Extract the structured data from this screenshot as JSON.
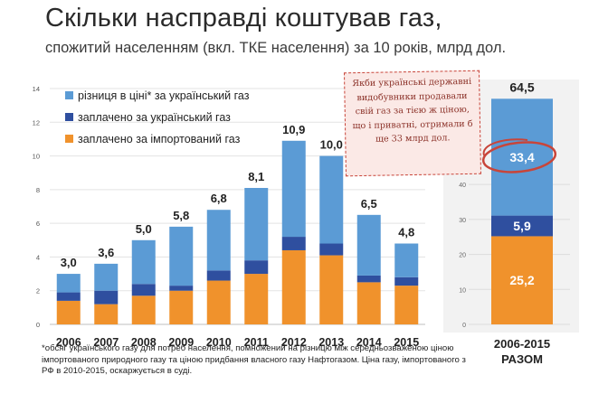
{
  "title": "Скільки насправді коштував газ,",
  "subtitle": "спожитий населенням (вкл. ТКЕ населення) за 10 років, млрд дол.",
  "colors": {
    "diff": "#5b9bd5",
    "ukrainian": "#2f4f9f",
    "imported": "#f0922c",
    "annotation": "#c8453a"
  },
  "chart_data": [
    {
      "type": "bar",
      "stacked": true,
      "categories": [
        "2006",
        "2007",
        "2008",
        "2009",
        "2010",
        "2011",
        "2012",
        "2013",
        "2014",
        "2015"
      ],
      "series": [
        {
          "name": "заплачено за імпортований газ",
          "values": [
            1.4,
            1.2,
            1.7,
            2.0,
            2.6,
            3.0,
            4.4,
            4.1,
            2.5,
            2.3
          ]
        },
        {
          "name": "заплачено за український газ",
          "values": [
            0.5,
            0.8,
            0.7,
            0.3,
            0.6,
            0.8,
            0.8,
            0.7,
            0.4,
            0.5
          ]
        },
        {
          "name": "різниця в ціні* за український газ",
          "values": [
            1.1,
            1.6,
            2.6,
            3.5,
            3.6,
            4.3,
            5.7,
            5.2,
            3.6,
            2.0
          ]
        }
      ],
      "totals": [
        "3,0",
        "3,6",
        "5,0",
        "5,8",
        "6,8",
        "8,1",
        "10,9",
        "10,0",
        "6,5",
        "4,8"
      ],
      "ylim": [
        0,
        14
      ],
      "yticks": [
        0,
        2,
        4,
        6,
        8,
        10,
        12,
        14
      ],
      "legend_position": "top-left",
      "xlabel": "",
      "ylabel": ""
    },
    {
      "type": "bar",
      "stacked": true,
      "categories": [
        "2006-2015 РАЗОМ"
      ],
      "category_lines": [
        "2006-2015",
        "РАЗОМ"
      ],
      "series": [
        {
          "name": "заплачено за імпортований газ",
          "values": [
            25.2
          ],
          "label": "25,2"
        },
        {
          "name": "заплачено за український газ",
          "values": [
            5.9
          ],
          "label": "5,9"
        },
        {
          "name": "різниця в ціні* за український газ",
          "values": [
            33.4
          ],
          "label": "33,4"
        }
      ],
      "total": "64,5",
      "ylim": [
        0,
        70
      ],
      "yticks": [
        0,
        10,
        20,
        30,
        40
      ],
      "annotation": {
        "text": "Якби українські державні видобувники продавали свій газ за тією ж ціною, що і приватні, отримали б ще 33 млрд дол.",
        "target": "33,4"
      }
    }
  ],
  "footnote": "*обсяг українського газу для потреб населення, помножений на різницю між середньозваженою ціною імпортованого природного газу та ціною придбання власного газу Нафтогазом. Ціна газу, імпортованого з РФ в 2010-2015, оскаржується в суді."
}
